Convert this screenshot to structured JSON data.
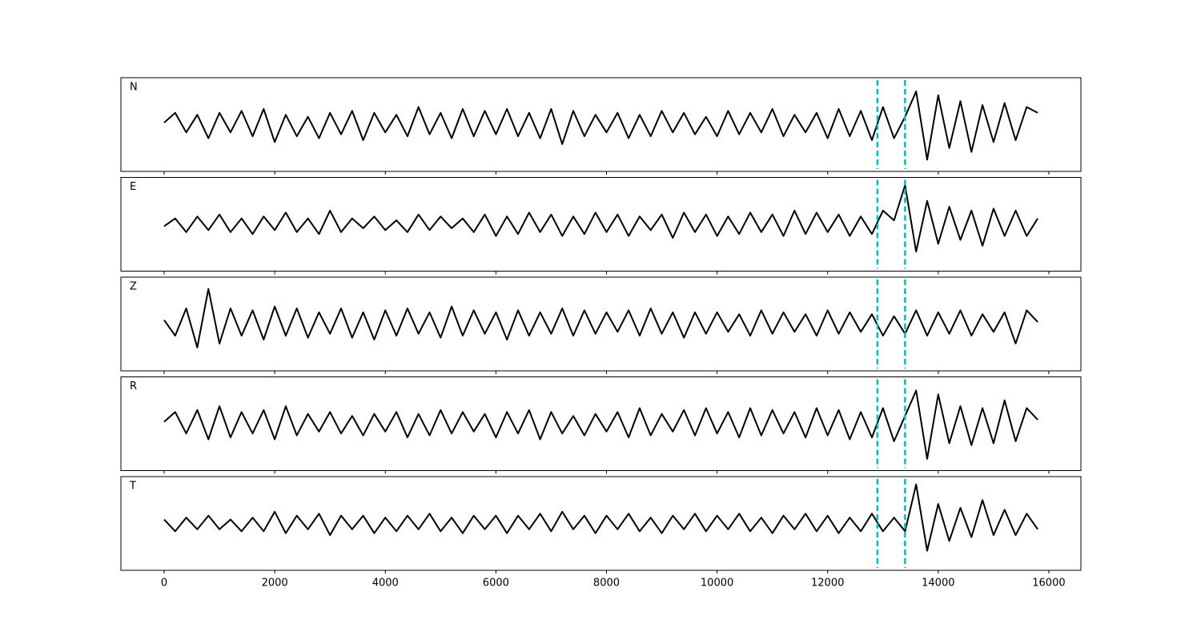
{
  "chart_data": {
    "type": "line",
    "x": [
      0,
      200,
      400,
      600,
      800,
      1000,
      1200,
      1400,
      1600,
      1800,
      2000,
      2200,
      2400,
      2600,
      2800,
      3000,
      3200,
      3400,
      3600,
      3800,
      4000,
      4200,
      4400,
      4600,
      4800,
      5000,
      5200,
      5400,
      5600,
      5800,
      6000,
      6200,
      6400,
      6600,
      6800,
      7000,
      7200,
      7400,
      7600,
      7800,
      8000,
      8200,
      8400,
      8600,
      8800,
      9000,
      9200,
      9400,
      9600,
      9800,
      10000,
      10200,
      10400,
      10600,
      10800,
      11000,
      11200,
      11400,
      11600,
      11800,
      12000,
      12200,
      12400,
      12600,
      12800,
      13000,
      13200,
      13400,
      13600,
      13800,
      14000,
      14200,
      14400,
      14600,
      14800,
      15000,
      15200,
      15400,
      15600,
      15800
    ],
    "color": "#000000",
    "series": [
      {
        "name": "N",
        "values": [
          0.05,
          0.3,
          -0.2,
          0.25,
          -0.35,
          0.3,
          -0.2,
          0.35,
          -0.3,
          0.4,
          -0.45,
          0.25,
          -0.3,
          0.2,
          -0.35,
          0.3,
          -0.25,
          0.35,
          -0.4,
          0.3,
          -0.2,
          0.25,
          -0.3,
          0.45,
          -0.25,
          0.3,
          -0.35,
          0.4,
          -0.3,
          0.35,
          -0.25,
          0.4,
          -0.3,
          0.3,
          -0.35,
          0.4,
          -0.5,
          0.35,
          -0.3,
          0.25,
          -0.2,
          0.3,
          -0.35,
          0.25,
          -0.3,
          0.35,
          -0.2,
          0.3,
          -0.25,
          0.2,
          -0.3,
          0.35,
          -0.25,
          0.3,
          -0.2,
          0.4,
          -0.3,
          0.25,
          -0.2,
          0.3,
          -0.35,
          0.4,
          -0.3,
          0.35,
          -0.4,
          0.45,
          -0.35,
          0.2,
          0.85,
          -0.9,
          0.75,
          -0.6,
          0.6,
          -0.7,
          0.5,
          -0.45,
          0.55,
          -0.4,
          0.45,
          0.3
        ]
      },
      {
        "name": "E",
        "values": [
          -0.05,
          0.15,
          -0.2,
          0.2,
          -0.15,
          0.25,
          -0.2,
          0.15,
          -0.25,
          0.2,
          -0.15,
          0.3,
          -0.2,
          0.15,
          -0.25,
          0.35,
          -0.2,
          0.15,
          -0.1,
          0.2,
          -0.15,
          0.1,
          -0.2,
          0.25,
          -0.15,
          0.2,
          -0.1,
          0.15,
          -0.2,
          0.25,
          -0.3,
          0.2,
          -0.25,
          0.3,
          -0.2,
          0.25,
          -0.3,
          0.2,
          -0.25,
          0.3,
          -0.2,
          0.25,
          -0.3,
          0.2,
          -0.15,
          0.25,
          -0.35,
          0.3,
          -0.2,
          0.25,
          -0.3,
          0.2,
          -0.25,
          0.3,
          -0.2,
          0.25,
          -0.3,
          0.35,
          -0.25,
          0.3,
          -0.2,
          0.25,
          -0.3,
          0.2,
          -0.25,
          0.35,
          0.1,
          1.0,
          -0.7,
          0.6,
          -0.5,
          0.45,
          -0.4,
          0.35,
          -0.55,
          0.4,
          -0.3,
          0.35,
          -0.3,
          0.15
        ]
      },
      {
        "name": "Z",
        "values": [
          0.1,
          -0.3,
          0.4,
          -0.6,
          0.9,
          -0.5,
          0.4,
          -0.3,
          0.35,
          -0.4,
          0.45,
          -0.3,
          0.4,
          -0.35,
          0.3,
          -0.25,
          0.4,
          -0.35,
          0.3,
          -0.4,
          0.35,
          -0.3,
          0.4,
          -0.25,
          0.3,
          -0.35,
          0.45,
          -0.3,
          0.35,
          -0.25,
          0.3,
          -0.4,
          0.35,
          -0.3,
          0.3,
          -0.25,
          0.4,
          -0.3,
          0.35,
          -0.25,
          0.3,
          -0.2,
          0.35,
          -0.3,
          0.4,
          -0.25,
          0.3,
          -0.35,
          0.3,
          -0.25,
          0.3,
          -0.2,
          0.25,
          -0.3,
          0.35,
          -0.25,
          0.3,
          -0.2,
          0.25,
          -0.3,
          0.35,
          -0.25,
          0.3,
          -0.2,
          0.25,
          -0.3,
          0.2,
          -0.25,
          0.35,
          -0.3,
          0.3,
          -0.25,
          0.35,
          -0.3,
          0.25,
          -0.2,
          0.3,
          -0.5,
          0.35,
          0.05
        ]
      },
      {
        "name": "R",
        "values": [
          0.05,
          0.3,
          -0.25,
          0.35,
          -0.4,
          0.45,
          -0.35,
          0.3,
          -0.25,
          0.35,
          -0.4,
          0.45,
          -0.3,
          0.25,
          -0.2,
          0.3,
          -0.25,
          0.2,
          -0.3,
          0.25,
          -0.2,
          0.3,
          -0.35,
          0.25,
          -0.3,
          0.35,
          -0.25,
          0.3,
          -0.2,
          0.25,
          -0.35,
          0.3,
          -0.25,
          0.35,
          -0.4,
          0.3,
          -0.25,
          0.2,
          -0.3,
          0.25,
          -0.2,
          0.3,
          -0.35,
          0.4,
          -0.3,
          0.25,
          -0.2,
          0.35,
          -0.3,
          0.4,
          -0.25,
          0.3,
          -0.35,
          0.4,
          -0.3,
          0.35,
          -0.25,
          0.3,
          -0.35,
          0.4,
          -0.3,
          0.35,
          -0.4,
          0.3,
          -0.35,
          0.4,
          -0.45,
          0.2,
          0.85,
          -0.9,
          0.75,
          -0.5,
          0.45,
          -0.55,
          0.4,
          -0.5,
          0.6,
          -0.45,
          0.4,
          0.1
        ]
      },
      {
        "name": "T",
        "values": [
          0.1,
          -0.2,
          0.15,
          -0.15,
          0.2,
          -0.15,
          0.1,
          -0.2,
          0.15,
          -0.2,
          0.3,
          -0.25,
          0.2,
          -0.15,
          0.25,
          -0.3,
          0.2,
          -0.15,
          0.2,
          -0.25,
          0.15,
          -0.2,
          0.2,
          -0.15,
          0.25,
          -0.2,
          0.15,
          -0.25,
          0.2,
          -0.15,
          0.2,
          -0.25,
          0.2,
          -0.15,
          0.25,
          -0.2,
          0.3,
          -0.15,
          0.2,
          -0.25,
          0.2,
          -0.15,
          0.25,
          -0.2,
          0.15,
          -0.25,
          0.2,
          -0.15,
          0.25,
          -0.2,
          0.2,
          -0.15,
          0.25,
          -0.2,
          0.15,
          -0.25,
          0.2,
          -0.15,
          0.25,
          -0.2,
          0.2,
          -0.25,
          0.15,
          -0.2,
          0.25,
          -0.2,
          0.15,
          -0.2,
          1.0,
          -0.7,
          0.5,
          -0.45,
          0.4,
          -0.35,
          0.6,
          -0.3,
          0.35,
          -0.3,
          0.25,
          -0.15
        ]
      }
    ],
    "markers": {
      "x": [
        12900,
        13400
      ],
      "color": "#00bfbf",
      "style": "dashed"
    },
    "xlim": [
      -782,
      16580
    ],
    "xticks": [
      0,
      2000,
      4000,
      6000,
      8000,
      10000,
      12000,
      14000,
      16000
    ],
    "ylim": [
      -1.2,
      1.2
    ]
  }
}
